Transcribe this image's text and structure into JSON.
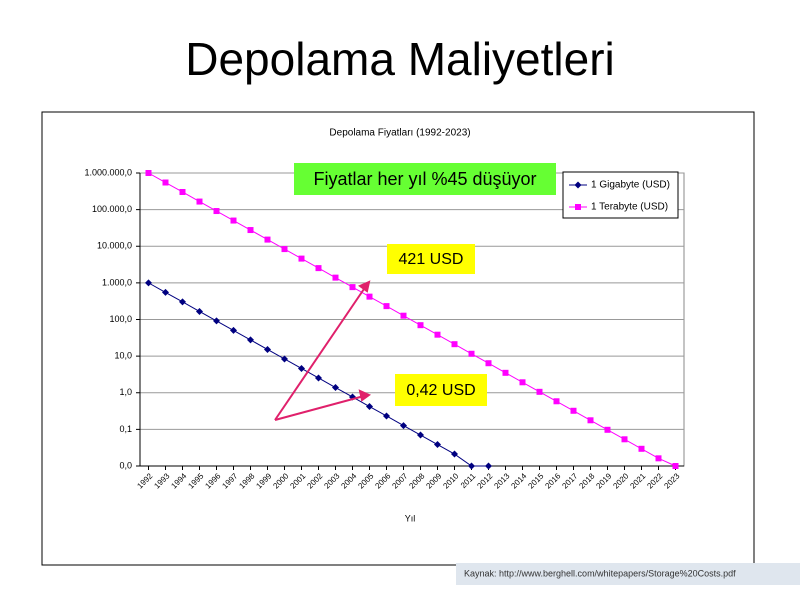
{
  "slide_title": "Depolama Maliyetleri",
  "source": "Kaynak: http://www.berghell.com/whitepapers/Storage%20Costs.pdf",
  "chart_data": {
    "type": "line",
    "title": "Depolama Fiyatları (1992-2023)",
    "x_label": "Yıl",
    "annotations": [
      "Fiyatlar her yıl %45 düşüyor",
      "421 USD",
      "0,42 USD"
    ],
    "categories": [
      "1992",
      "1993",
      "1994",
      "1995",
      "1996",
      "1997",
      "1998",
      "1999",
      "2000",
      "2001",
      "2002",
      "2003",
      "2004",
      "2005",
      "2006",
      "2007",
      "2008",
      "2009",
      "2010",
      "2011",
      "2012",
      "2013",
      "2014",
      "2015",
      "2016",
      "2017",
      "2018",
      "2019",
      "2020",
      "2021",
      "2022",
      "2023"
    ],
    "series": [
      {
        "name": "1 Gigabyte (USD)",
        "color": "#000080",
        "marker": "diamond",
        "values": [
          1000,
          550,
          303,
          166,
          91.5,
          50.3,
          27.7,
          15.2,
          8.37,
          4.6,
          2.53,
          1.39,
          0.766,
          0.421,
          0.232,
          0.127,
          0.07,
          0.0385,
          0.0212,
          0.01,
          0.01,
          null,
          null,
          null,
          null,
          null,
          null,
          null,
          null,
          null,
          null,
          null
        ]
      },
      {
        "name": "1 Terabyte (USD)",
        "color": "#ff00ff",
        "marker": "square",
        "values": [
          1000000,
          550000,
          303000,
          166000,
          91500,
          50300,
          27700,
          15200,
          8370,
          4600,
          2530,
          1390,
          766,
          421,
          232,
          127,
          70,
          38.5,
          21.2,
          11.6,
          6.4,
          3.5,
          1.93,
          1.06,
          0.585,
          0.322,
          0.177,
          0.0974,
          0.0536,
          0.0295,
          0.0162,
          0.01
        ]
      }
    ],
    "log_y": true,
    "grid": true,
    "legend": "upper right",
    "ylim": [
      0.01,
      1000000
    ],
    "yticks": [
      {
        "value": 0.01,
        "label": "0,0"
      },
      {
        "value": 0.1,
        "label": "0,1"
      },
      {
        "value": 1,
        "label": "1,0"
      },
      {
        "value": 10,
        "label": "10,0"
      },
      {
        "value": 100,
        "label": "100,0"
      },
      {
        "value": 1000,
        "label": "1.000,0"
      },
      {
        "value": 10000,
        "label": "10.000,0"
      },
      {
        "value": 100000,
        "label": "100.000,0"
      },
      {
        "value": 1000000,
        "label": "1.000.000,0"
      }
    ]
  }
}
